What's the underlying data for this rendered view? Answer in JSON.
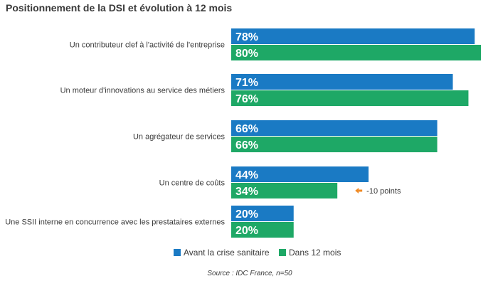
{
  "chart_data": {
    "type": "bar",
    "orientation": "horizontal",
    "title": "Positionnement de la DSI et évolution à 12 mois",
    "categories": [
      "Un contributeur clef à l'activité de l'entreprise",
      "Un moteur d'innovations au service des métiers",
      "Un agrégateur de services",
      "Un centre de coûts",
      "Une SSII interne en concurrence avec les prestataires externes"
    ],
    "series": [
      {
        "name": "Avant la crise sanitaire",
        "values": [
          78,
          71,
          66,
          44,
          20
        ],
        "labels": [
          "78%",
          "71%",
          "66%",
          "44%",
          "20%"
        ],
        "color": "#1a7ac4"
      },
      {
        "name": "Dans 12 mois",
        "values": [
          80,
          76,
          66,
          34,
          20
        ],
        "labels": [
          "80%",
          "76%",
          "66%",
          "34%",
          "20%"
        ],
        "color": "#1ea866"
      }
    ],
    "xlim": [
      0,
      80
    ],
    "grid": false,
    "legend": "bottom",
    "annotation": {
      "text": "-10 points",
      "category_index": 3,
      "series_index": 1,
      "arrow_color": "#f08a24"
    },
    "source": "Source : IDC France, n=50"
  }
}
